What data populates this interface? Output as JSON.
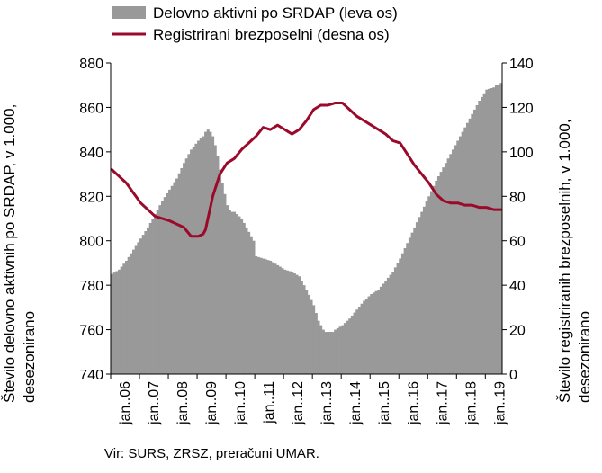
{
  "chart_data": {
    "type": "bar+line",
    "x_tick_labels": [
      "jan..06",
      "jan..07",
      "jan..08",
      "jan..09",
      "jan..10",
      "jan..11",
      "jan..12",
      "jan..13",
      "jan..14",
      "jan..15",
      "jan..16",
      "jan..17",
      "jan..18",
      "jan..19"
    ],
    "left_axis": {
      "title_line1": "Število delovno aktivnih po SRDAP, v 1.000,",
      "title_line2": "desezonirano",
      "ylim": [
        740,
        880
      ],
      "ticks": [
        "740",
        "760",
        "780",
        "800",
        "820",
        "840",
        "860",
        "880"
      ]
    },
    "right_axis": {
      "title_line1": "Število registriranih brezposelnih, v 1.000,",
      "title_line2": "desezonirano",
      "ylim": [
        0,
        140
      ],
      "ticks": [
        "0",
        "20",
        "40",
        "60",
        "80",
        "100",
        "120",
        "140"
      ]
    },
    "series": [
      {
        "name": "Delovno aktivni po SRDAP (leva os)",
        "axis": "left",
        "kind": "bar",
        "color": "#999999",
        "anchor_months": [
          0,
          3,
          6,
          9,
          12,
          15,
          18,
          21,
          24,
          27,
          30,
          33,
          36,
          38,
          39,
          40,
          41,
          42,
          43,
          44,
          45,
          46,
          47,
          48,
          49,
          50,
          51,
          52,
          53,
          54,
          55,
          56,
          57,
          58,
          59,
          60,
          63,
          66,
          69,
          72,
          75,
          78,
          81,
          84,
          86,
          87,
          88,
          89,
          90,
          91,
          92,
          93,
          96,
          99,
          102,
          105,
          108,
          111,
          114,
          117,
          120,
          123,
          126,
          129,
          132,
          135,
          138,
          141,
          144,
          147,
          150,
          153,
          156,
          159,
          160,
          161,
          162
        ],
        "anchor_values": [
          785,
          787,
          791,
          796,
          801,
          806,
          812,
          818,
          823,
          828,
          835,
          841,
          845,
          847,
          849,
          850,
          849,
          847,
          843,
          838,
          832,
          826,
          821,
          816,
          814,
          813,
          813,
          812,
          811,
          810,
          808,
          806,
          804,
          802,
          800,
          793,
          792,
          791,
          789,
          787,
          786,
          784,
          778,
          771,
          764,
          762,
          760,
          759,
          759,
          759,
          759,
          760,
          762,
          765,
          769,
          773,
          776,
          778,
          782,
          786,
          792,
          799,
          806,
          813,
          820,
          827,
          833,
          839,
          845,
          851,
          857,
          863,
          868,
          869,
          870,
          870,
          871
        ]
      },
      {
        "name": "Registrirani brezposelni (desna os)",
        "axis": "right",
        "kind": "line",
        "color": "#9b0a2a",
        "anchor_months": [
          0,
          6,
          12,
          18,
          24,
          30,
          33,
          36,
          38,
          39,
          42,
          45,
          48,
          51,
          54,
          57,
          60,
          63,
          66,
          69,
          72,
          75,
          78,
          81,
          84,
          87,
          90,
          93,
          96,
          99,
          102,
          105,
          108,
          111,
          114,
          117,
          120,
          123,
          126,
          129,
          132,
          135,
          138,
          141,
          144,
          147,
          150,
          153,
          156,
          159,
          162
        ],
        "anchor_values": [
          92,
          86,
          77,
          71,
          69,
          66,
          62,
          62,
          63,
          65,
          80,
          90,
          95,
          97,
          101,
          104,
          107,
          111,
          110,
          112,
          110,
          108,
          110,
          114,
          119,
          121,
          121,
          122,
          122,
          119,
          116,
          114,
          112,
          110,
          108,
          105,
          104,
          99,
          94,
          90,
          86,
          81,
          78,
          77,
          77,
          76,
          76,
          75,
          75,
          74,
          74
        ]
      }
    ],
    "source": "Vir: SURS, ZRSZ, preračuni UMAR."
  }
}
